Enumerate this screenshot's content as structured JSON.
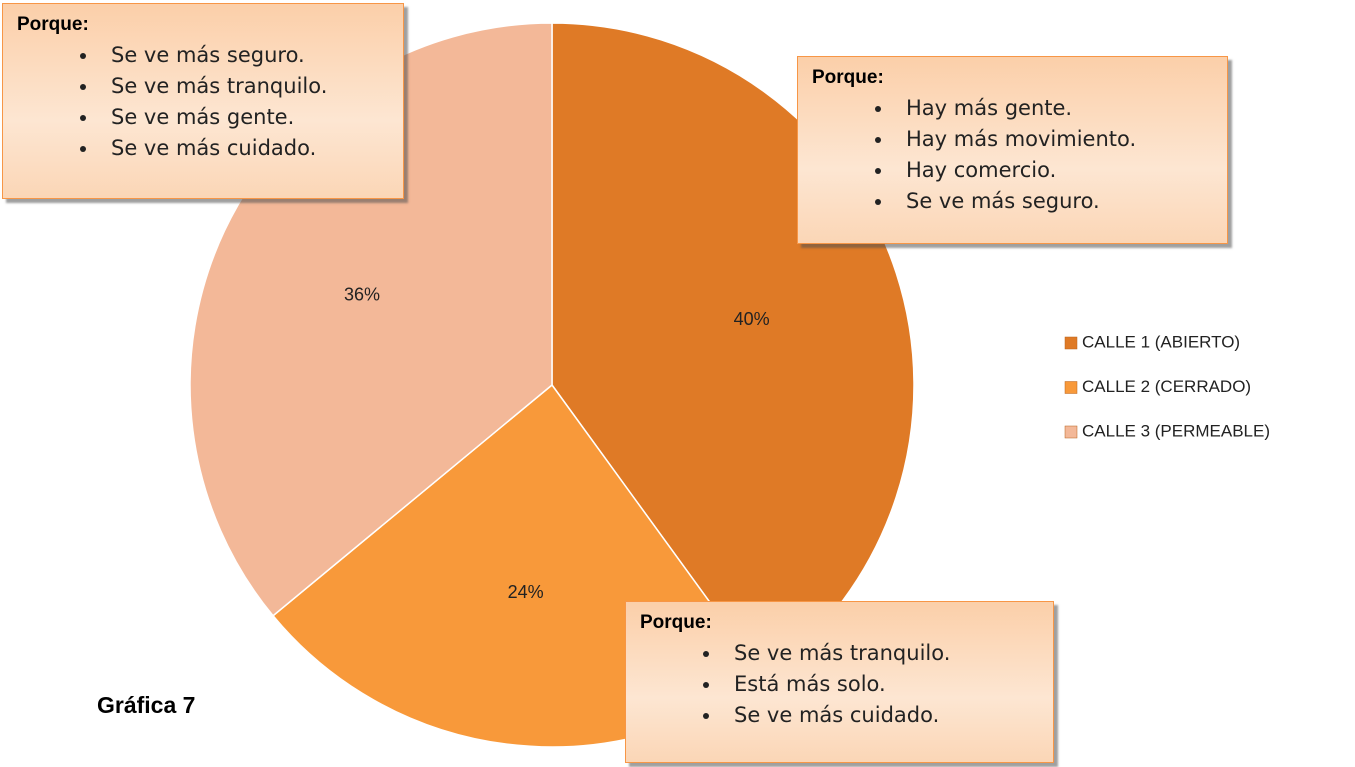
{
  "chart_data": {
    "type": "pie",
    "title": "Gráfica 7",
    "categories": [
      "CALLE 1 (ABIERTO)",
      "CALLE 2 (CERRADO)",
      "CALLE 3 (PERMEABLE)"
    ],
    "values": [
      40,
      24,
      36
    ],
    "value_labels": [
      "40%",
      "24%",
      "36%"
    ],
    "colors": [
      "#df7a26",
      "#f8993a",
      "#f3b898"
    ],
    "legend": "right",
    "annotations": [
      {
        "title": "Porque:",
        "items": [
          "Se ve más seguro.",
          "Se ve más tranquilo.",
          "Se ve más gente.",
          "Se ve más cuidado."
        ]
      },
      {
        "title": "Porque:",
        "items": [
          "Hay más gente.",
          "Hay más movimiento.",
          "Hay comercio.",
          "Se ve más seguro."
        ]
      },
      {
        "title": "Porque:",
        "items": [
          "Se ve más tranquilo.",
          "Está más solo.",
          "Se ve más cuidado."
        ]
      }
    ]
  }
}
